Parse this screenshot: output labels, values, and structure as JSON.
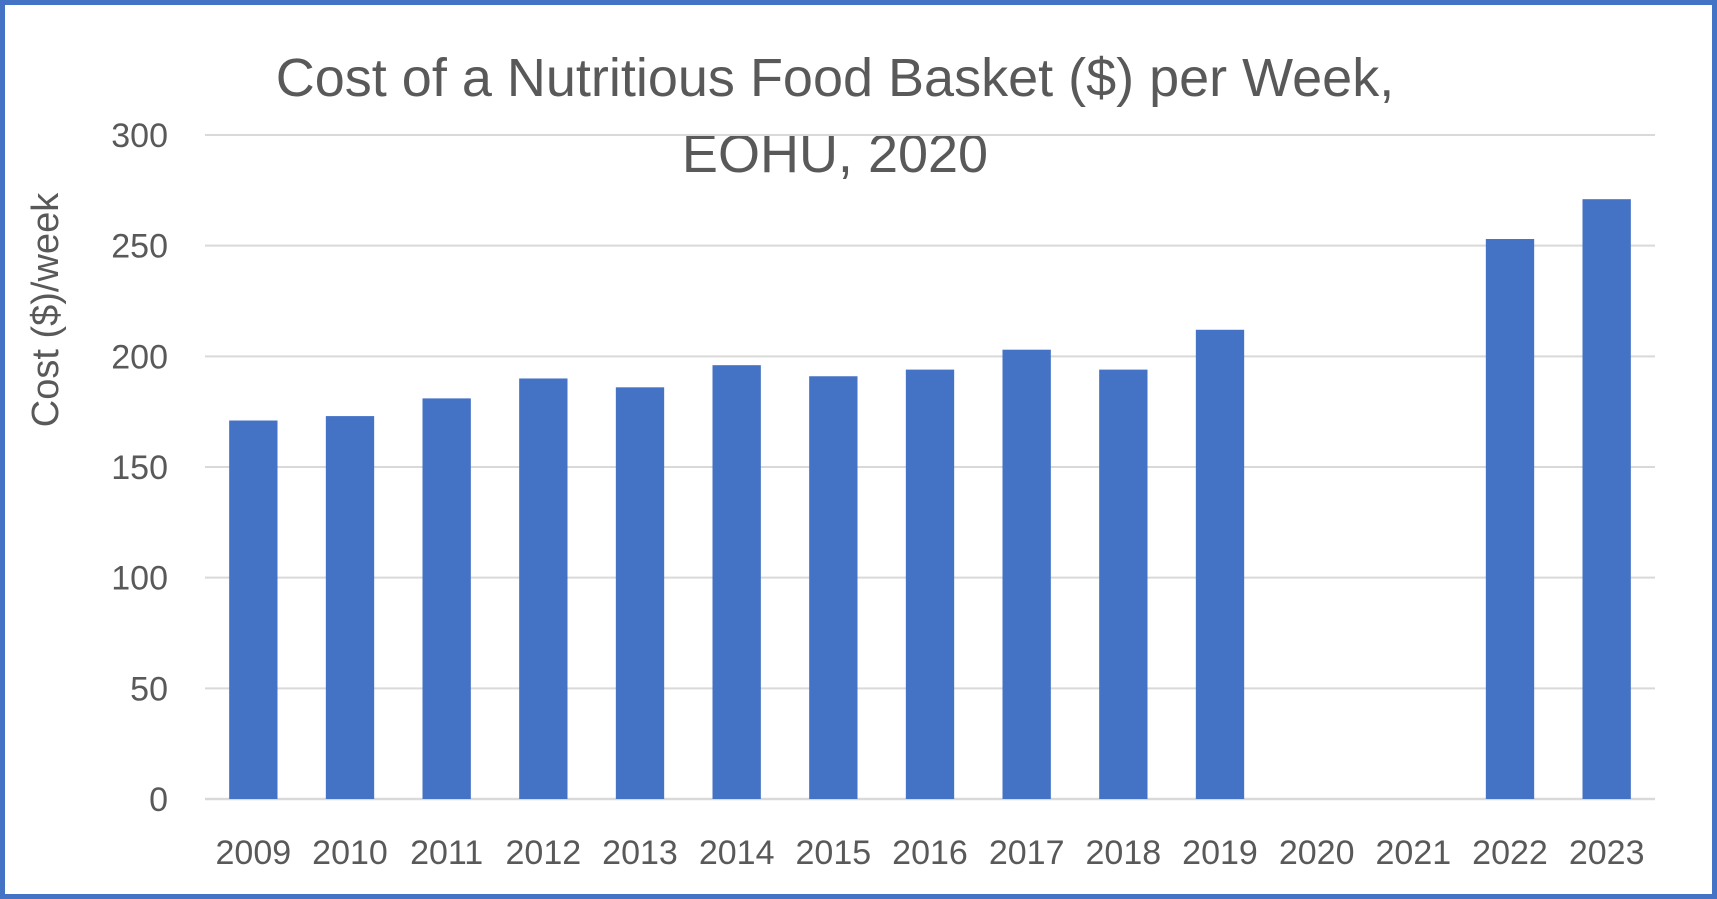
{
  "chart_data": {
    "type": "bar",
    "title_lines": [
      "Cost of a Nutritious Food Basket ($) per Week,",
      "EOHU, 2020"
    ],
    "ylabel": "Cost ($)/week",
    "xlabel": "",
    "categories": [
      "2009",
      "2010",
      "2011",
      "2012",
      "2013",
      "2014",
      "2015",
      "2016",
      "2017",
      "2018",
      "2019",
      "2020",
      "2021",
      "2022",
      "2023"
    ],
    "values": [
      171,
      173,
      181,
      190,
      186,
      196,
      191,
      194,
      203,
      194,
      212,
      null,
      null,
      253,
      271
    ],
    "ylim": [
      0,
      300
    ],
    "yticks": [
      "0",
      "50",
      "100",
      "150",
      "200",
      "250",
      "300"
    ],
    "grid": true,
    "bar_color": "#4472C4",
    "grid_color": "#D9D9D9",
    "frame_color": "#4472C4"
  }
}
